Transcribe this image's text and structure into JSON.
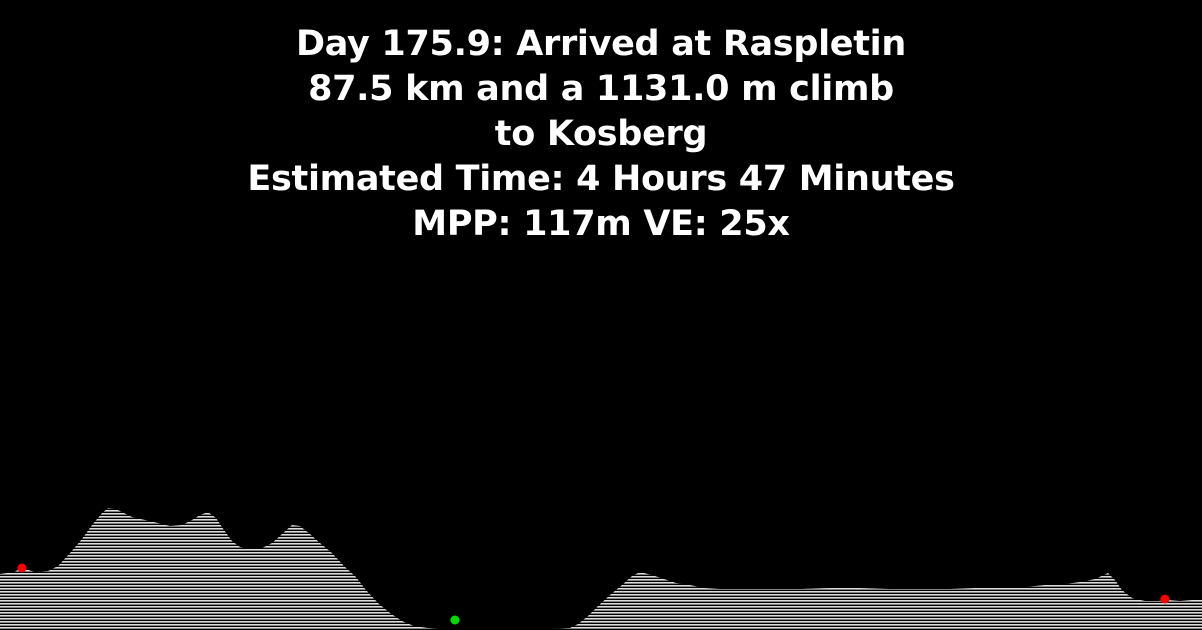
{
  "header": {
    "line1": "Day 175.9: Arrived at Raspletin",
    "line2": "87.5 km and a 1131.0 m climb",
    "line3": "to Kosberg",
    "line4": "Estimated Time: 4 Hours 47 Minutes",
    "line5": "MPP: 117m VE: 25x"
  },
  "colors": {
    "background": "#000000",
    "text": "#ffffff",
    "terrain_fill": "#d8d8d8",
    "start_marker": "#ff0000",
    "end_marker": "#ff0000",
    "current_marker": "#00dd00"
  },
  "markers": [
    {
      "name": "start-marker",
      "color": "start_marker"
    },
    {
      "name": "current-position-marker",
      "color": "current_marker"
    },
    {
      "name": "end-marker",
      "color": "end_marker"
    }
  ]
}
